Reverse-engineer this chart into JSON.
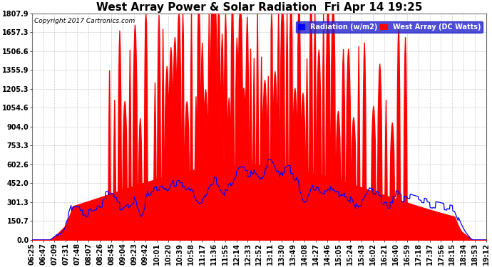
{
  "title": "West Array Power & Solar Radiation  Fri Apr 14 19:25",
  "copyright": "Copyright 2017 Cartronics.com",
  "legend_radiation": "Radiation (w/m2)",
  "legend_west": "West Array (DC Watts)",
  "ylabel_values": [
    0.0,
    150.7,
    301.3,
    452.0,
    602.6,
    753.3,
    904.0,
    1054.6,
    1205.3,
    1355.9,
    1506.6,
    1657.3,
    1807.9
  ],
  "ymax": 1807.9,
  "ymin": 0.0,
  "bg_color": "#ffffff",
  "plot_bg_color": "#ffffff",
  "grid_color": "#aaaaaa",
  "radiation_color": "#0000ff",
  "west_array_color": "#ff0000",
  "title_fontsize": 11,
  "tick_fontsize": 7,
  "x_labels": [
    "06:25",
    "06:47",
    "07:09",
    "07:31",
    "07:48",
    "08:07",
    "08:26",
    "08:45",
    "09:04",
    "09:23",
    "09:42",
    "10:01",
    "10:20",
    "10:39",
    "10:58",
    "11:17",
    "11:36",
    "11:55",
    "12:14",
    "12:33",
    "12:52",
    "13:11",
    "13:30",
    "13:49",
    "14:08",
    "14:27",
    "14:46",
    "15:05",
    "15:24",
    "15:43",
    "16:02",
    "16:21",
    "16:40",
    "16:59",
    "17:18",
    "17:37",
    "17:56",
    "18:15",
    "18:34",
    "18:53",
    "19:12"
  ]
}
